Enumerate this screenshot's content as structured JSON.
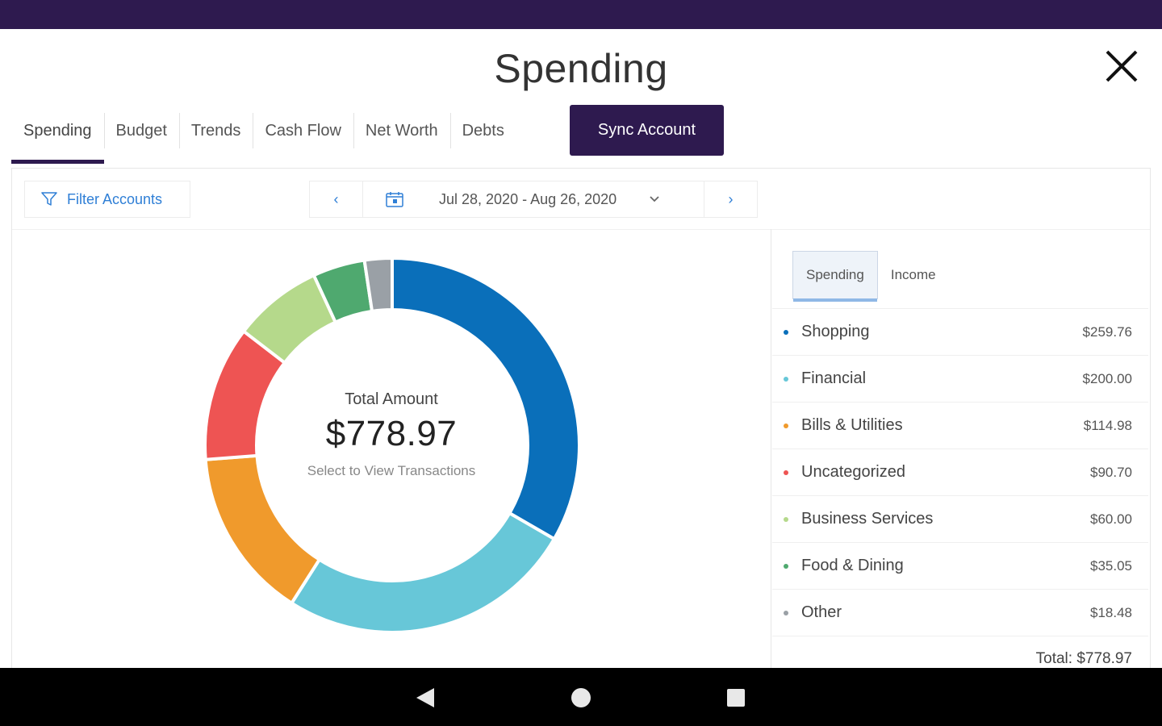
{
  "page": {
    "title": "Spending"
  },
  "tabs": [
    {
      "label": "Spending",
      "active": true
    },
    {
      "label": "Budget",
      "active": false
    },
    {
      "label": "Trends",
      "active": false
    },
    {
      "label": "Cash Flow",
      "active": false
    },
    {
      "label": "Net Worth",
      "active": false
    },
    {
      "label": "Debts",
      "active": false
    }
  ],
  "sync_button": {
    "label": "Sync Account"
  },
  "filter": {
    "label": "Filter Accounts"
  },
  "date_range": {
    "label": "Jul 28, 2020 - Aug 26, 2020",
    "prev_icon": "‹",
    "next_icon": "›"
  },
  "summary": {
    "label": "Total Amount",
    "amount": "$778.97",
    "hint": "Select to View Transactions"
  },
  "toggle": {
    "spending": "Spending",
    "income": "Income"
  },
  "categories": [
    {
      "name": "Shopping",
      "amount": "$259.76",
      "color": "#0a6fba"
    },
    {
      "name": "Financial",
      "amount": "$200.00",
      "color": "#67c7d8"
    },
    {
      "name": "Bills & Utilities",
      "amount": "$114.98",
      "color": "#f09a2c"
    },
    {
      "name": "Uncategorized",
      "amount": "$90.70",
      "color": "#ee5453"
    },
    {
      "name": "Business Services",
      "amount": "$60.00",
      "color": "#b5d98b"
    },
    {
      "name": "Food & Dining",
      "amount": "$35.05",
      "color": "#4fa96f"
    },
    {
      "name": "Other",
      "amount": "$18.48",
      "color": "#9aa0a6"
    }
  ],
  "total": {
    "label": "Total: $778.97"
  },
  "chart_data": {
    "type": "pie",
    "categories": [
      "Shopping",
      "Financial",
      "Bills & Utilities",
      "Uncategorized",
      "Business Services",
      "Food & Dining",
      "Other"
    ],
    "values": [
      259.76,
      200.0,
      114.98,
      90.7,
      60.0,
      35.05,
      18.48
    ],
    "colors": [
      "#0a6fba",
      "#67c7d8",
      "#f09a2c",
      "#ee5453",
      "#b5d98b",
      "#4fa96f",
      "#9aa0a6"
    ],
    "title": ""
  },
  "icons": {
    "close": "close-icon",
    "filter": "filter-icon",
    "calendar": "calendar-icon",
    "dropdown": "chevron-down-icon",
    "nav_back": "back-triangle-icon",
    "nav_home": "home-circle-icon",
    "nav_recents": "recents-square-icon"
  },
  "colors": {
    "brand": "#2e1a4f",
    "link": "#2f7fd6"
  }
}
